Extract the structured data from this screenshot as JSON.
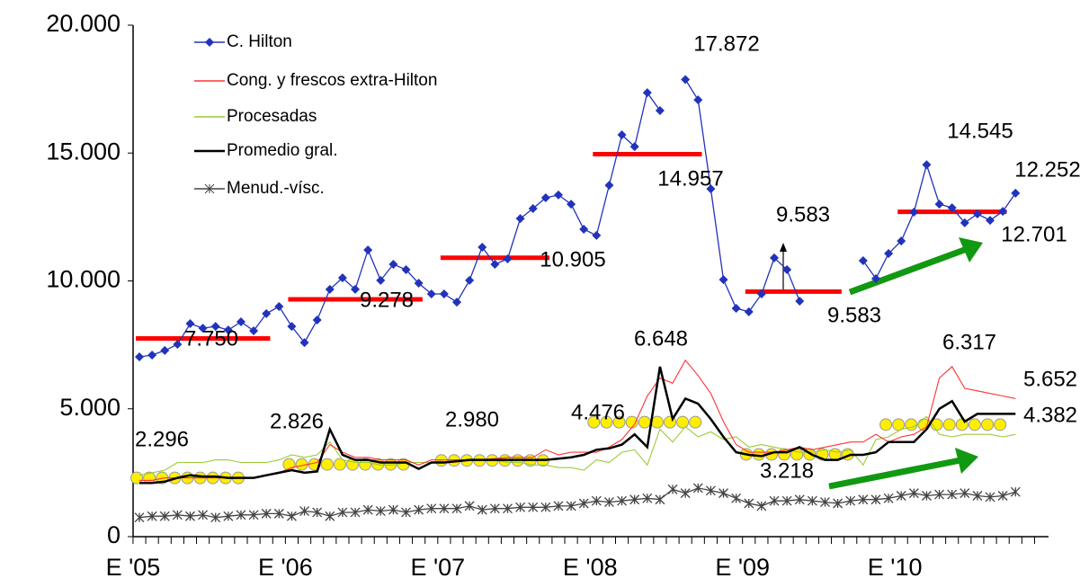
{
  "chart_data": {
    "type": "line",
    "categories": [
      "E '05",
      null,
      null,
      null,
      null,
      null,
      null,
      null,
      null,
      null,
      null,
      null,
      "E '06",
      null,
      null,
      null,
      null,
      null,
      null,
      null,
      null,
      null,
      null,
      null,
      "E '07",
      null,
      null,
      null,
      null,
      null,
      null,
      null,
      null,
      null,
      null,
      null,
      "E '08",
      null,
      null,
      null,
      null,
      null,
      null,
      null,
      null,
      null,
      null,
      null,
      "E '09",
      null,
      null,
      null,
      null,
      null,
      null,
      null,
      null,
      null,
      null,
      null,
      "E '10",
      null,
      null,
      null,
      null,
      null,
      null,
      null,
      null,
      null,
      null,
      null
    ],
    "series": [
      {
        "name": "C. Hilton",
        "color": "#2233bb",
        "marker": "diamond",
        "values": [
          7030,
          7100,
          7280,
          7520,
          8330,
          8150,
          8220,
          8080,
          8400,
          8050,
          8720,
          9000,
          8220,
          7590,
          8470,
          9670,
          10120,
          9670,
          11210,
          10020,
          10650,
          10440,
          9910,
          9490,
          9490,
          9170,
          10020,
          11320,
          10650,
          10860,
          12440,
          12830,
          13250,
          13360,
          13000,
          12020,
          11780,
          13740,
          15710,
          15250,
          17360,
          16660,
          null,
          17872,
          17080,
          13600,
          10050,
          8930,
          8790,
          9490,
          10900,
          10440,
          9210,
          null,
          null,
          null,
          null,
          10790,
          10090,
          11070,
          11560,
          12690,
          14545,
          13000,
          12860,
          12270,
          12620,
          12370,
          12720,
          13430,
          null,
          null
        ]
      },
      {
        "name": "Cong. y frescos extra-Hilton",
        "color": "#ff3333",
        "values": [
          2200,
          2200,
          2300,
          2300,
          2300,
          2300,
          2300,
          2300,
          2300,
          2300,
          2400,
          2500,
          2700,
          2800,
          2900,
          3600,
          3300,
          3100,
          3100,
          3000,
          3000,
          3000,
          2800,
          3000,
          3000,
          3000,
          3000,
          3000,
          3050,
          3100,
          3100,
          3100,
          3400,
          3200,
          3300,
          3300,
          3300,
          3500,
          3800,
          4400,
          5500,
          6200,
          6000,
          6900,
          6300,
          5600,
          4500,
          3600,
          3300,
          3300,
          3300,
          3400,
          3500,
          3400,
          3500,
          3600,
          3700,
          3700,
          4000,
          3700,
          3900,
          4000,
          4300,
          6200,
          6650,
          5800,
          5700,
          5600,
          5500,
          5400,
          null,
          null
        ]
      },
      {
        "name": "Procesadas",
        "color": "#99cc33",
        "values": [
          2400,
          2500,
          2600,
          2900,
          2900,
          2900,
          3000,
          3000,
          2900,
          2900,
          2900,
          3000,
          3200,
          3100,
          3200,
          3700,
          3000,
          2900,
          2900,
          2800,
          2800,
          2900,
          2900,
          2900,
          3000,
          3000,
          3000,
          3000,
          3000,
          2900,
          2900,
          2800,
          2800,
          2700,
          2700,
          2600,
          3000,
          2900,
          3300,
          3400,
          2800,
          4200,
          3700,
          4300,
          3900,
          4100,
          3800,
          3900,
          3500,
          3600,
          3500,
          3400,
          3300,
          3300,
          3400,
          3300,
          3400,
          2800,
          3800,
          3900,
          4200,
          4300,
          4700,
          4000,
          3900,
          4000,
          4000,
          4000,
          3900,
          4000,
          null,
          null
        ]
      },
      {
        "name": "Promedio gral.",
        "color": "#000000",
        "width": 2.5,
        "values": [
          2100,
          2100,
          2150,
          2300,
          2400,
          2350,
          2350,
          2300,
          2300,
          2300,
          2400,
          2500,
          2600,
          2500,
          2550,
          4200,
          3200,
          3000,
          3000,
          2900,
          2900,
          2900,
          2650,
          2900,
          2900,
          2950,
          3000,
          3000,
          3000,
          3000,
          3000,
          3000,
          3000,
          3050,
          3100,
          3200,
          3400,
          3450,
          3600,
          4000,
          3500,
          6648,
          4600,
          5400,
          5200,
          4600,
          3900,
          3300,
          3200,
          3150,
          3300,
          3300,
          3500,
          3200,
          3000,
          3000,
          3200,
          3200,
          3300,
          3700,
          3700,
          3700,
          4200,
          5000,
          5300,
          4500,
          4800,
          4800,
          4800,
          4800,
          null,
          null
        ]
      },
      {
        "name": "Menud.-vísc.",
        "color": "#444444",
        "marker": "star",
        "values": [
          750,
          800,
          800,
          850,
          800,
          850,
          750,
          800,
          850,
          850,
          900,
          900,
          800,
          1000,
          950,
          800,
          950,
          950,
          1050,
          1000,
          1050,
          950,
          1050,
          1100,
          1100,
          1100,
          1200,
          1050,
          1100,
          1100,
          1150,
          1150,
          1150,
          1200,
          1200,
          1300,
          1400,
          1350,
          1400,
          1450,
          1500,
          1450,
          1850,
          1700,
          1900,
          1800,
          1700,
          1500,
          1300,
          1200,
          1400,
          1400,
          1450,
          1400,
          1350,
          1300,
          1400,
          1450,
          1450,
          1500,
          1600,
          1700,
          1600,
          1650,
          1650,
          1700,
          1600,
          1550,
          1600,
          1750,
          null,
          null
        ]
      }
    ],
    "hilton_annual_averages": [
      {
        "value": 7750,
        "label": "7.750"
      },
      {
        "value": 9278,
        "label": "9.278"
      },
      {
        "value": 10905,
        "label": "10.905"
      },
      {
        "value": 14957,
        "label": "14.957"
      },
      {
        "value": 9583,
        "label": "9.583"
      },
      {
        "value": 12701,
        "label": "12.701"
      }
    ],
    "hilton_average_color": "#ff0000",
    "general_annual_averages": [
      {
        "value": 2296,
        "label": "2.296"
      },
      {
        "value": 2826,
        "label": "2.826"
      },
      {
        "value": 2980,
        "label": "2.980"
      },
      {
        "value": 4476,
        "label": "4.476"
      },
      {
        "value": 3218,
        "label": "3.218"
      },
      {
        "value": 4382,
        "label": "4.382"
      }
    ],
    "general_average_color": "#ffee00",
    "annotations": [
      "17.872",
      "14.545",
      "12.252",
      "9.583",
      "6.648",
      "6.317",
      "5.652"
    ],
    "ylim": [
      0,
      20000
    ],
    "yticks": [
      0,
      {
        "value": 5000,
        "label": "5.000"
      },
      {
        "value": 10000,
        "label": "10.000"
      },
      {
        "value": 15000,
        "label": "15.000"
      },
      {
        "value": 20000,
        "label": "20.000"
      }
    ],
    "legend": "upper left"
  }
}
